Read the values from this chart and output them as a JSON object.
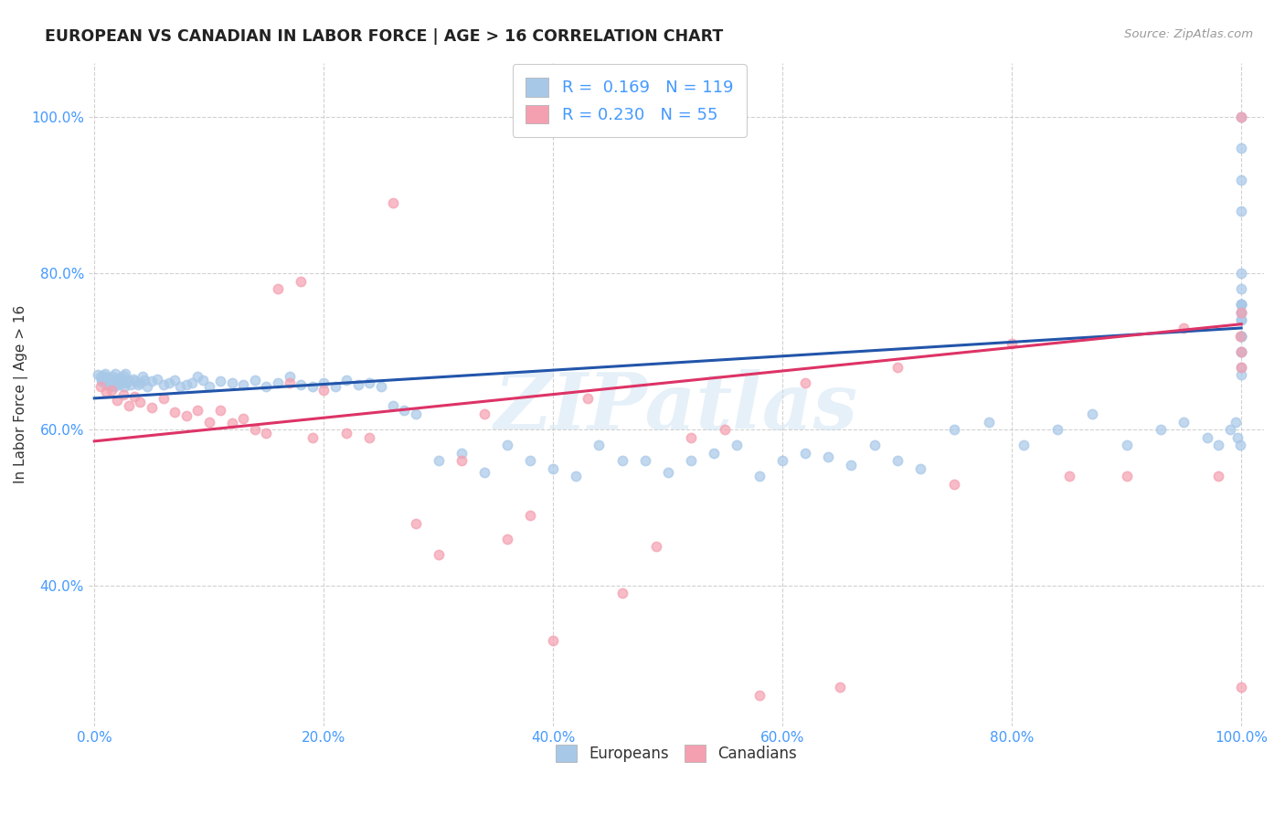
{
  "title": "EUROPEAN VS CANADIAN IN LABOR FORCE | AGE > 16 CORRELATION CHART",
  "source": "Source: ZipAtlas.com",
  "ylabel": "In Labor Force | Age > 16",
  "legend_blue_label": "Europeans",
  "legend_pink_label": "Canadians",
  "R_blue": "0.169",
  "N_blue": "119",
  "R_pink": "0.230",
  "N_pink": "55",
  "blue_color": "#a8c8e8",
  "pink_color": "#f4a0b0",
  "blue_line_color": "#2255aa",
  "pink_line_color": "#dd3366",
  "watermark": "ZIPatlas",
  "background_color": "#ffffff",
  "grid_color": "#cccccc",
  "tick_color": "#4499ff",
  "title_color": "#222222",
  "source_color": "#999999",
  "ylabel_color": "#333333",
  "blue_x": [
    0.003,
    0.005,
    0.006,
    0.007,
    0.008,
    0.009,
    0.01,
    0.011,
    0.012,
    0.013,
    0.014,
    0.015,
    0.016,
    0.017,
    0.018,
    0.019,
    0.02,
    0.021,
    0.022,
    0.023,
    0.024,
    0.025,
    0.026,
    0.027,
    0.028,
    0.03,
    0.032,
    0.034,
    0.036,
    0.038,
    0.04,
    0.042,
    0.044,
    0.046,
    0.05,
    0.055,
    0.06,
    0.065,
    0.07,
    0.075,
    0.08,
    0.085,
    0.09,
    0.095,
    0.1,
    0.11,
    0.12,
    0.13,
    0.14,
    0.15,
    0.16,
    0.17,
    0.18,
    0.19,
    0.2,
    0.21,
    0.22,
    0.23,
    0.24,
    0.25,
    0.26,
    0.27,
    0.28,
    0.3,
    0.32,
    0.34,
    0.36,
    0.38,
    0.4,
    0.42,
    0.44,
    0.46,
    0.48,
    0.5,
    0.52,
    0.54,
    0.56,
    0.58,
    0.6,
    0.62,
    0.64,
    0.66,
    0.68,
    0.7,
    0.72,
    0.75,
    0.78,
    0.81,
    0.84,
    0.87,
    0.9,
    0.93,
    0.95,
    0.97,
    0.98,
    0.99,
    0.995,
    0.997,
    0.999,
    1.0,
    1.0,
    1.0,
    1.0,
    1.0,
    1.0,
    1.0,
    1.0,
    1.0,
    1.0,
    1.0,
    1.0,
    1.0,
    1.0,
    1.0,
    1.0,
    1.0,
    1.0,
    1.0,
    1.0
  ],
  "blue_y": [
    0.67,
    0.668,
    0.662,
    0.665,
    0.669,
    0.671,
    0.658,
    0.663,
    0.667,
    0.66,
    0.656,
    0.664,
    0.668,
    0.655,
    0.672,
    0.66,
    0.665,
    0.658,
    0.663,
    0.667,
    0.661,
    0.669,
    0.655,
    0.672,
    0.66,
    0.663,
    0.658,
    0.665,
    0.662,
    0.657,
    0.66,
    0.668,
    0.663,
    0.655,
    0.662,
    0.665,
    0.658,
    0.66,
    0.663,
    0.655,
    0.658,
    0.66,
    0.668,
    0.663,
    0.655,
    0.662,
    0.66,
    0.658,
    0.663,
    0.655,
    0.66,
    0.668,
    0.658,
    0.655,
    0.66,
    0.655,
    0.663,
    0.658,
    0.66,
    0.655,
    0.63,
    0.625,
    0.62,
    0.56,
    0.57,
    0.545,
    0.58,
    0.56,
    0.55,
    0.54,
    0.58,
    0.56,
    0.56,
    0.545,
    0.56,
    0.57,
    0.58,
    0.54,
    0.56,
    0.57,
    0.565,
    0.555,
    0.58,
    0.56,
    0.55,
    0.6,
    0.61,
    0.58,
    0.6,
    0.62,
    0.58,
    0.6,
    0.61,
    0.59,
    0.58,
    0.6,
    0.61,
    0.59,
    0.58,
    0.67,
    0.72,
    0.76,
    0.78,
    0.8,
    0.72,
    0.74,
    0.76,
    0.75,
    0.7,
    0.68,
    0.72,
    0.74,
    0.76,
    0.7,
    0.75,
    0.88,
    0.92,
    0.96,
    1.0
  ],
  "pink_x": [
    0.005,
    0.01,
    0.015,
    0.02,
    0.025,
    0.03,
    0.035,
    0.04,
    0.05,
    0.06,
    0.07,
    0.08,
    0.09,
    0.1,
    0.11,
    0.12,
    0.13,
    0.14,
    0.15,
    0.16,
    0.17,
    0.18,
    0.19,
    0.2,
    0.22,
    0.24,
    0.26,
    0.28,
    0.3,
    0.32,
    0.34,
    0.36,
    0.38,
    0.4,
    0.43,
    0.46,
    0.49,
    0.52,
    0.55,
    0.58,
    0.62,
    0.65,
    0.7,
    0.75,
    0.8,
    0.85,
    0.9,
    0.95,
    0.98,
    0.999,
    1.0,
    1.0,
    1.0,
    1.0,
    1.0
  ],
  "pink_y": [
    0.655,
    0.648,
    0.65,
    0.638,
    0.645,
    0.63,
    0.642,
    0.635,
    0.628,
    0.64,
    0.622,
    0.618,
    0.625,
    0.61,
    0.625,
    0.608,
    0.614,
    0.6,
    0.595,
    0.78,
    0.66,
    0.79,
    0.59,
    0.65,
    0.595,
    0.59,
    0.89,
    0.48,
    0.44,
    0.56,
    0.62,
    0.46,
    0.49,
    0.33,
    0.64,
    0.39,
    0.45,
    0.59,
    0.6,
    0.26,
    0.66,
    0.27,
    0.68,
    0.53,
    0.71,
    0.54,
    0.54,
    0.73,
    0.54,
    0.72,
    0.68,
    0.75,
    0.27,
    0.7,
    1.0
  ],
  "blue_intercept": 0.64,
  "blue_slope": 0.09,
  "pink_intercept": 0.585,
  "pink_slope": 0.15
}
